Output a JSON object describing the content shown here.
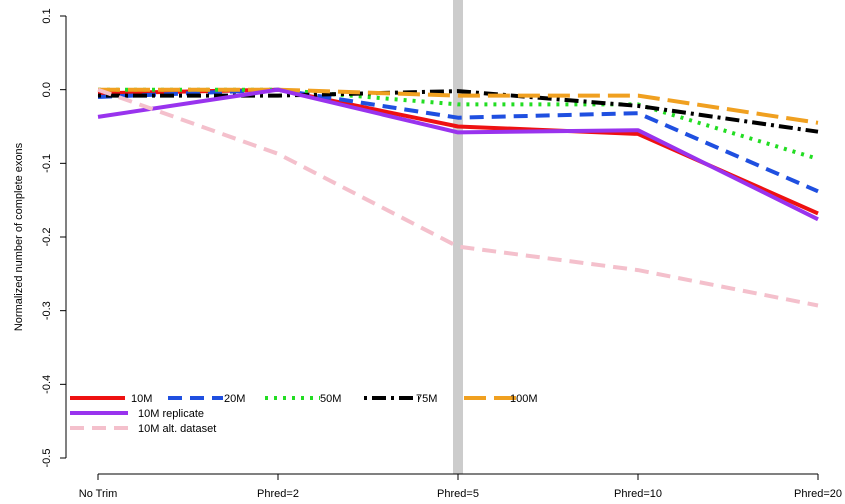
{
  "chart_data": {
    "type": "line",
    "title": "",
    "xlabel": "",
    "ylabel": "Normalized number of complete exons",
    "categories": [
      "No Trim",
      "Phred=2",
      "Phred=5",
      "Phred=10",
      "Phred=20"
    ],
    "ylim": [
      -0.5,
      0.1
    ],
    "yticks": [
      0.1,
      0.0,
      -0.1,
      -0.2,
      -0.3,
      -0.4,
      -0.5
    ],
    "ytick_labels": [
      "0.1",
      "0.0",
      "-0.1",
      "-0.2",
      "-0.3",
      "-0.4",
      "-0.5"
    ],
    "grid": false,
    "highlight_category": "Phred=5",
    "highlight_color": "#cccccc",
    "legend_position": "bottom-left",
    "series": [
      {
        "name": "10M",
        "values": [
          -0.005,
          0.0,
          -0.05,
          -0.06,
          -0.168
        ],
        "color": "#ee1111",
        "dash": "solid"
      },
      {
        "name": "20M",
        "values": [
          -0.01,
          0.0,
          -0.038,
          -0.032,
          -0.138
        ],
        "color": "#1f4fe0",
        "dash": "dashed"
      },
      {
        "name": "50M",
        "values": [
          0.0,
          0.0,
          -0.02,
          -0.02,
          -0.094
        ],
        "color": "#22dd22",
        "dash": "dotted"
      },
      {
        "name": "75M",
        "values": [
          -0.008,
          -0.008,
          -0.002,
          -0.022,
          -0.057
        ],
        "color": "#000000",
        "dash": "dotdash"
      },
      {
        "name": "100M",
        "values": [
          0.0,
          0.0,
          -0.008,
          -0.008,
          -0.045
        ],
        "color": "#f0a020",
        "dash": "longdash"
      },
      {
        "name": "10M replicate",
        "values": [
          -0.037,
          0.0,
          -0.058,
          -0.055,
          -0.176
        ],
        "color": "#9933ee",
        "dash": "solid"
      },
      {
        "name": "10M alt. dataset",
        "values": [
          0.0,
          -0.087,
          -0.213,
          -0.245,
          -0.293
        ],
        "color": "#f4c0cc",
        "dash": "dashed"
      }
    ]
  }
}
